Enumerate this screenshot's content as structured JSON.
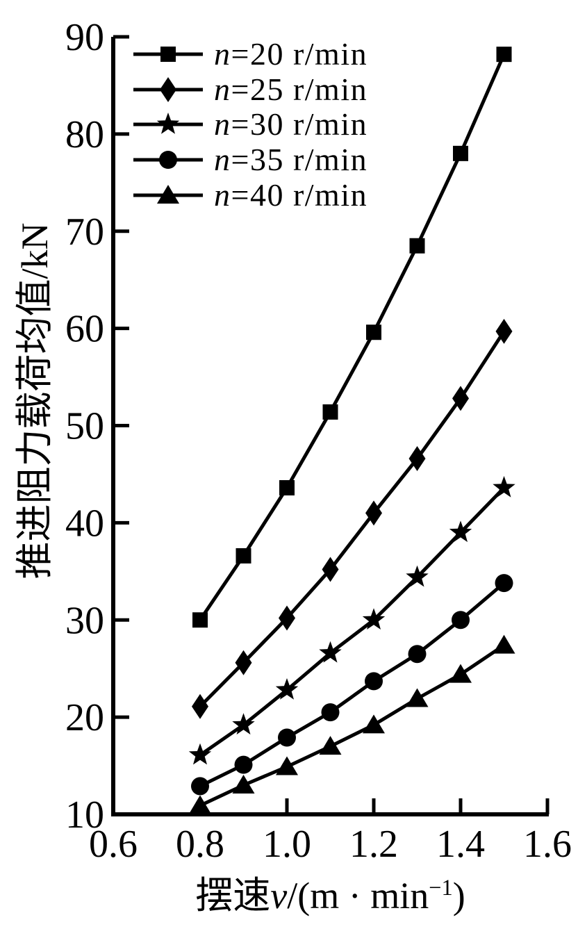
{
  "colors": {
    "foreground": "#000000",
    "background": "#ffffff"
  },
  "chart_data": {
    "type": "line",
    "title": "",
    "xlabel": {
      "text": "摆速v/(m · min−1)",
      "prefix": "摆速",
      "var": "v",
      "mid": "/(m · min",
      "sup": "−1",
      "end": ")"
    },
    "ylabel": "推进阻力载荷均值/kN",
    "xlim": [
      0.6,
      1.6
    ],
    "ylim": [
      10,
      90
    ],
    "xticks": [
      "0.6",
      "0.8",
      "1.0",
      "1.2",
      "1.4",
      "1.6"
    ],
    "yticks": [
      "10",
      "20",
      "30",
      "40",
      "50",
      "60",
      "70",
      "80",
      "90"
    ],
    "grid": false,
    "legend_position": "top-left",
    "x": [
      0.8,
      0.9,
      1.0,
      1.1,
      1.2,
      1.3,
      1.4,
      1.5
    ],
    "series": [
      {
        "label": "n=20 r/min",
        "var": "n",
        "rest": "=20 r/min",
        "marker": "square",
        "color": "#000000",
        "values": [
          30.0,
          36.6,
          43.6,
          51.4,
          59.6,
          68.5,
          78.0,
          88.2
        ]
      },
      {
        "label": "n=25 r/min",
        "var": "n",
        "rest": "=25 r/min",
        "marker": "diamond",
        "color": "#000000",
        "values": [
          21.1,
          25.6,
          30.2,
          35.2,
          41.0,
          46.6,
          52.8,
          59.7
        ]
      },
      {
        "label": "n=30 r/min",
        "var": "n",
        "rest": "=30 r/min",
        "marker": "star",
        "color": "#000000",
        "values": [
          16.1,
          19.2,
          22.8,
          26.6,
          30.0,
          34.4,
          39.0,
          43.6
        ]
      },
      {
        "label": "n=35 r/min",
        "var": "n",
        "rest": "=35 r/min",
        "marker": "circle",
        "color": "#000000",
        "values": [
          12.9,
          15.1,
          17.9,
          20.5,
          23.7,
          26.5,
          30.0,
          33.8
        ]
      },
      {
        "label": "n=40 r/min",
        "var": "n",
        "rest": "=40 r/min",
        "marker": "triangle",
        "color": "#000000",
        "values": [
          10.9,
          13.0,
          14.9,
          17.0,
          19.2,
          21.9,
          24.4,
          27.4
        ]
      }
    ]
  }
}
